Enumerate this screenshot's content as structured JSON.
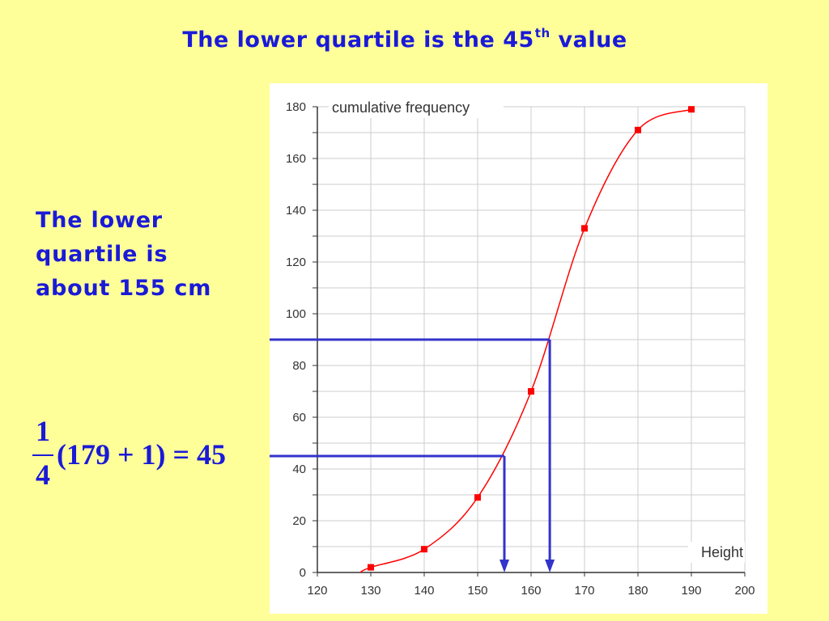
{
  "slide": {
    "title_main": "The lower quartile is the 45",
    "title_sup": "th",
    "title_end": " value"
  },
  "side_text": {
    "line1": "The lower",
    "line2": "quartile is",
    "line3": "about 155 cm"
  },
  "formula": {
    "numerator": "1",
    "denominator": "4",
    "expression": "(179 + 1) = 45"
  },
  "colors": {
    "background": "#FFFF99",
    "text": "#1A1AD8",
    "curve": "#FF0000",
    "guides": "#3333CC",
    "grid": "#CCCCCC"
  },
  "chart_data": {
    "type": "line",
    "title": "",
    "xlabel": "Height",
    "ylabel": "cumulative frequency",
    "xlim": [
      120,
      200
    ],
    "ylim": [
      0,
      180
    ],
    "x_ticks": [
      120,
      130,
      140,
      150,
      160,
      170,
      180,
      190,
      200
    ],
    "y_ticks": [
      0,
      20,
      40,
      60,
      80,
      100,
      120,
      140,
      160,
      180
    ],
    "grid": true,
    "series": [
      {
        "x": [
          130,
          140,
          150,
          160,
          170,
          180,
          190
        ],
        "values": [
          2,
          9,
          29,
          70,
          133,
          171,
          179
        ]
      }
    ],
    "curve_start": [
      128,
      0
    ],
    "guide_lines": [
      {
        "y": 45,
        "x": 155
      },
      {
        "y": 90,
        "x": 163.5
      }
    ]
  }
}
